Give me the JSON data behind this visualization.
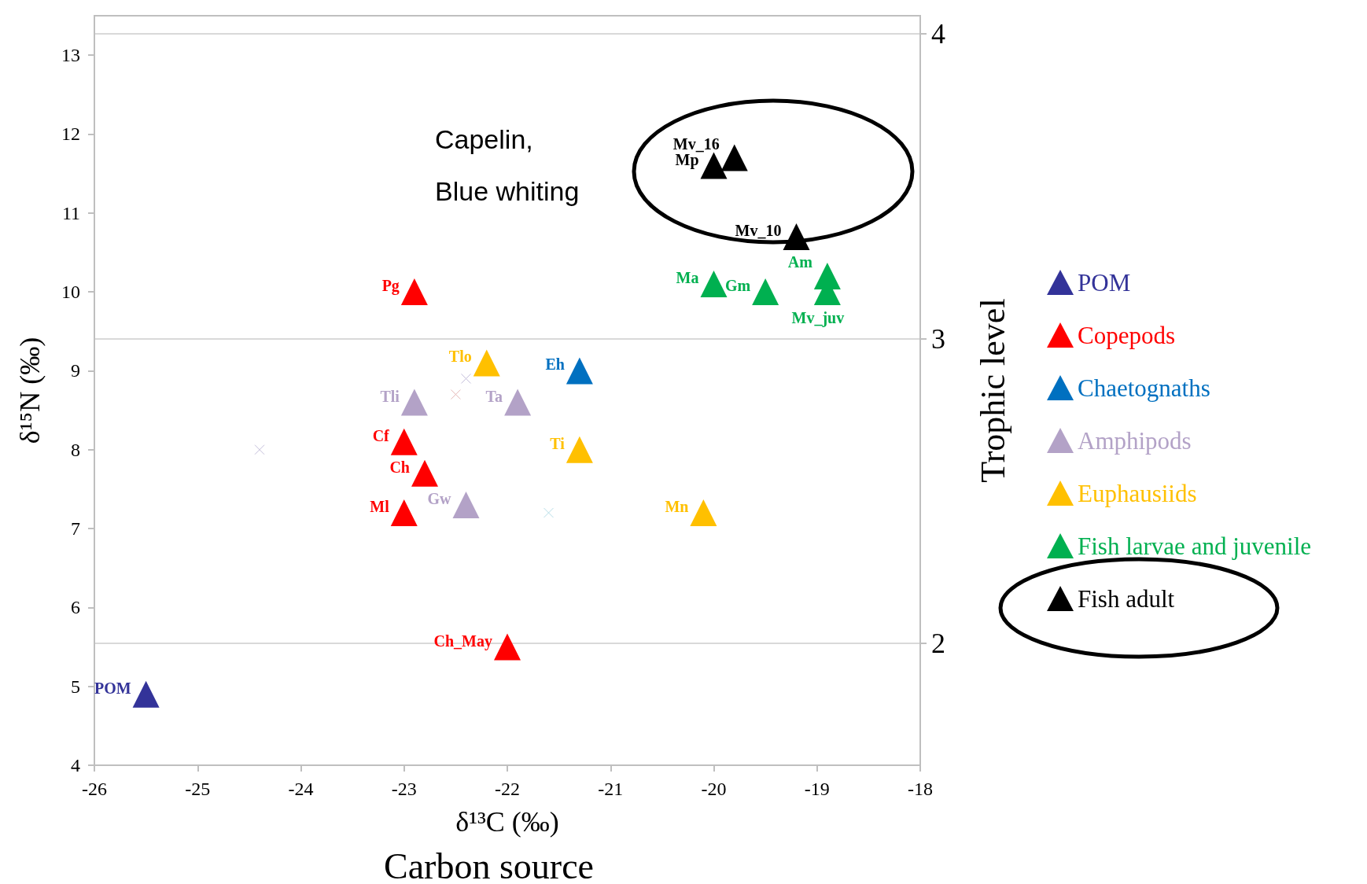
{
  "chart_data": {
    "type": "scatter",
    "xlabel": "δ¹³C (‰)",
    "ylabel": "δ¹⁵N (‰)",
    "y2label": "Trophic level",
    "xlim": [
      -26,
      -18
    ],
    "xticks": [
      -26,
      -25,
      -24,
      -23,
      -22,
      -21,
      -20,
      -19,
      -18
    ],
    "ylim": [
      4,
      13.5
    ],
    "yticks": [
      4,
      5,
      6,
      7,
      8,
      9,
      10,
      11,
      12,
      13
    ],
    "y2lim": [
      1.6,
      4.06
    ],
    "y2ticks": [
      2,
      3,
      4
    ],
    "marker": "triangle",
    "legend": "right",
    "grid": false,
    "ref_lines": [
      {
        "axis": "y2",
        "value": 2,
        "color": "#d9d9d9"
      },
      {
        "axis": "y2",
        "value": 3,
        "color": "#d9d9d9"
      },
      {
        "axis": "y2",
        "value": 4,
        "color": "#d9d9d9"
      }
    ],
    "series": [
      {
        "name": "POM",
        "color": "#333399",
        "x": [
          -25.5
        ],
        "values": [
          4.9
        ]
      },
      {
        "name": "Copepods",
        "color": "#ff0000",
        "x": [
          -22.9,
          -23.0,
          -22.8,
          -23.0,
          -22.0
        ],
        "values": [
          10.0,
          8.1,
          7.7,
          7.2,
          5.5
        ]
      },
      {
        "name": "Chaetognaths",
        "color": "#0070c0",
        "x": [
          -21.3
        ],
        "values": [
          9.0
        ]
      },
      {
        "name": "Amphipods",
        "color": "#b3a2c7",
        "x": [
          -22.9,
          -21.9,
          -22.4
        ],
        "values": [
          8.6,
          8.6,
          7.3
        ]
      },
      {
        "name": "Euphausiids",
        "color": "#ffc000",
        "x": [
          -22.2,
          -21.3,
          -20.1
        ],
        "values": [
          9.1,
          8.0,
          7.2
        ]
      },
      {
        "name": "Fish larvae and juvenile",
        "color": "#00b050",
        "x": [
          -20.0,
          -19.5,
          -18.9,
          -18.9
        ],
        "values": [
          10.1,
          10.0,
          10.2,
          10.0
        ]
      },
      {
        "name": "Fish adult",
        "color": "#000000",
        "x": [
          -19.8,
          -20.0,
          -19.2
        ],
        "values": [
          11.7,
          11.6,
          10.7
        ]
      },
      {
        "color": "#c5bfdb",
        "marker": "cross",
        "x": [
          -24.4,
          -22.4
        ],
        "values": [
          8.0,
          8.9
        ]
      },
      {
        "color": "#e6b9b8",
        "marker": "cross",
        "x": [
          -22.5
        ],
        "values": [
          8.7
        ]
      },
      {
        "color": "#b7dee8",
        "marker": "cross",
        "x": [
          -21.6
        ],
        "values": [
          7.2
        ]
      }
    ],
    "annotations": [
      "Capelin,\nBlue whiting",
      "Carbon source",
      {
        "text": "POM",
        "x": -25.5,
        "y": 4.9
      },
      {
        "text": "Pg",
        "x": -22.9,
        "y": 10.0
      },
      {
        "text": "Cf",
        "x": -23.0,
        "y": 8.1
      },
      {
        "text": "Ch",
        "x": -22.8,
        "y": 7.7
      },
      {
        "text": "Ml",
        "x": -23.0,
        "y": 7.2
      },
      {
        "text": "Ch_May",
        "x": -22.0,
        "y": 5.5
      },
      {
        "text": "Eh",
        "x": -21.3,
        "y": 9.0
      },
      {
        "text": "Tli",
        "x": -22.9,
        "y": 8.6
      },
      {
        "text": "Ta",
        "x": -21.9,
        "y": 8.6
      },
      {
        "text": "Gw",
        "x": -22.4,
        "y": 7.3
      },
      {
        "text": "Tlo",
        "x": -22.2,
        "y": 9.1
      },
      {
        "text": "Ti",
        "x": -21.3,
        "y": 8.0
      },
      {
        "text": "Mn",
        "x": -20.1,
        "y": 7.2
      },
      {
        "text": "Ma",
        "x": -20.0,
        "y": 10.1
      },
      {
        "text": "Gm",
        "x": -19.5,
        "y": 10.0
      },
      {
        "text": "Am",
        "x": -18.9,
        "y": 10.2
      },
      {
        "text": "Mv_juv",
        "x": -18.9,
        "y": 10.0
      },
      {
        "text": "Mv_16",
        "x": -19.8,
        "y": 11.7
      },
      {
        "text": "Mp",
        "x": -20.0,
        "y": 11.6
      },
      {
        "text": "Mv_10",
        "x": -19.2,
        "y": 10.7
      }
    ]
  }
}
